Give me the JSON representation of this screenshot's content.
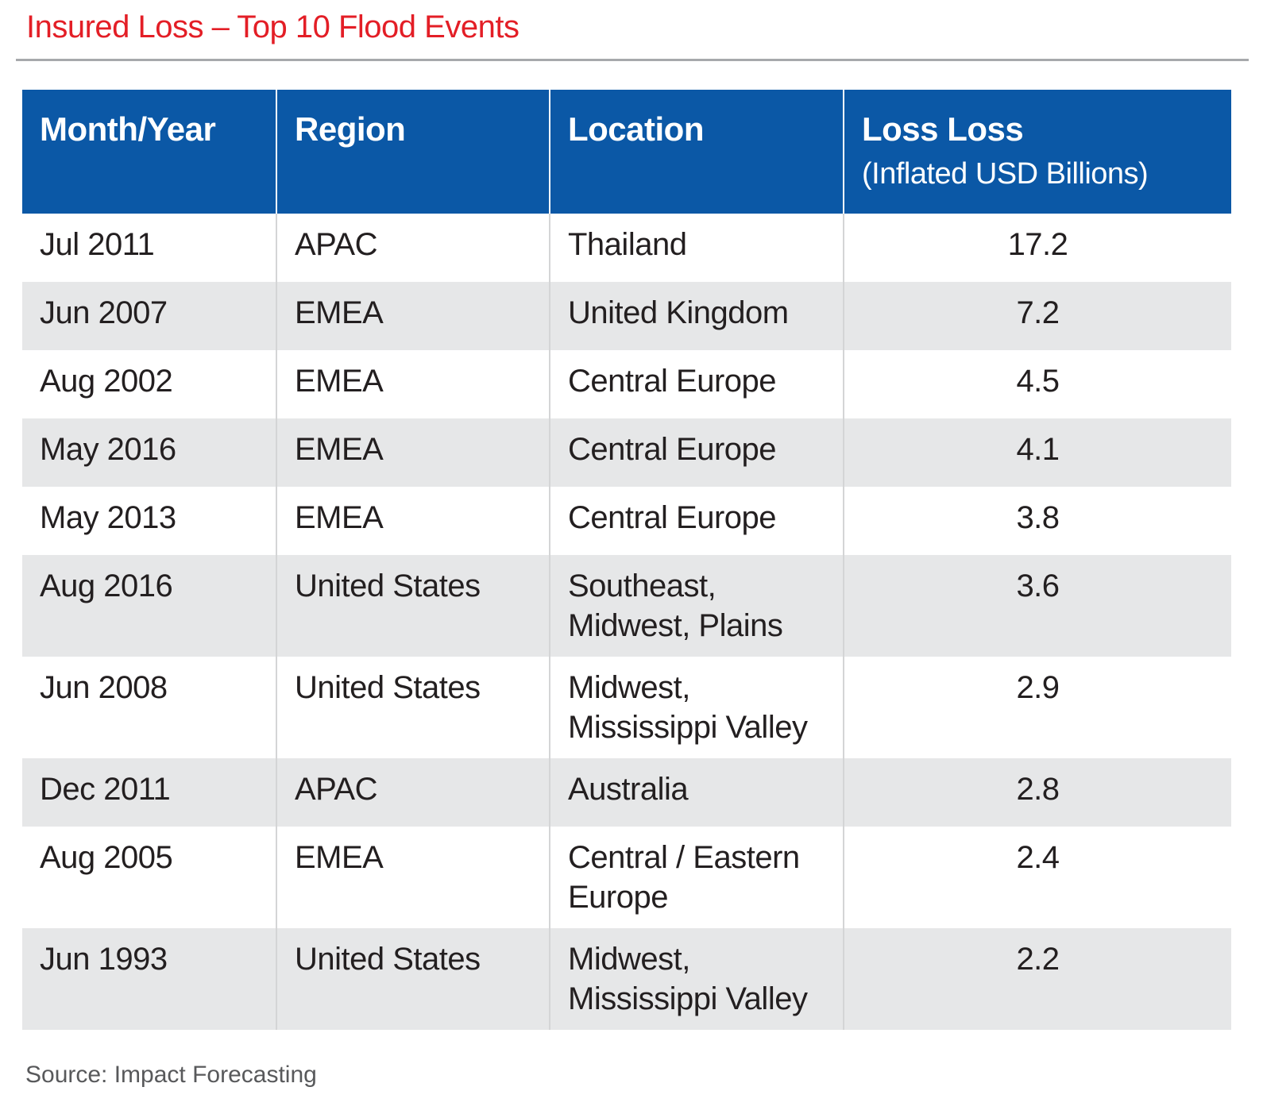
{
  "title": "Insured Loss – Top 10 Flood Events",
  "source": "Source: Impact Forecasting",
  "colors": {
    "accent_red": "#E31E26",
    "header_blue": "#0B58A6",
    "header_text": "#FFFFFF",
    "stripe_gray": "#E6E7E8",
    "rule_gray": "#A7A9AC",
    "separator_gray": "#D4D5D6",
    "body_text": "#231F20",
    "source_gray": "#58595B"
  },
  "chart_data": {
    "type": "table",
    "title": "Insured Loss – Top 10 Flood Events",
    "columns": [
      {
        "label": "Month/Year",
        "sub": ""
      },
      {
        "label": "Region",
        "sub": ""
      },
      {
        "label": "Location",
        "sub": ""
      },
      {
        "label": "Loss Loss",
        "sub": "(Inflated USD Billions)"
      }
    ],
    "rows": [
      [
        "Jul 2011",
        "APAC",
        "Thailand",
        "17.2"
      ],
      [
        "Jun 2007",
        "EMEA",
        "United Kingdom",
        "7.2"
      ],
      [
        "Aug 2002",
        "EMEA",
        "Central Europe",
        "4.5"
      ],
      [
        "May 2016",
        "EMEA",
        "Central Europe",
        "4.1"
      ],
      [
        "May 2013",
        "EMEA",
        "Central Europe",
        "3.8"
      ],
      [
        "Aug 2016",
        "United States",
        "Southeast,\nMidwest, Plains",
        "3.6"
      ],
      [
        "Jun 2008",
        "United States",
        "Midwest,\nMississippi Valley",
        "2.9"
      ],
      [
        "Dec 2011",
        "APAC",
        "Australia",
        "2.8"
      ],
      [
        "Aug 2005",
        "EMEA",
        "Central / Eastern\nEurope",
        "2.4"
      ],
      [
        "Jun 1993",
        "United States",
        "Midwest,\nMississippi Valley",
        "2.2"
      ]
    ],
    "source": "Source: Impact Forecasting",
    "layout": {
      "striped_rows": true,
      "value_column_align": "center"
    }
  }
}
